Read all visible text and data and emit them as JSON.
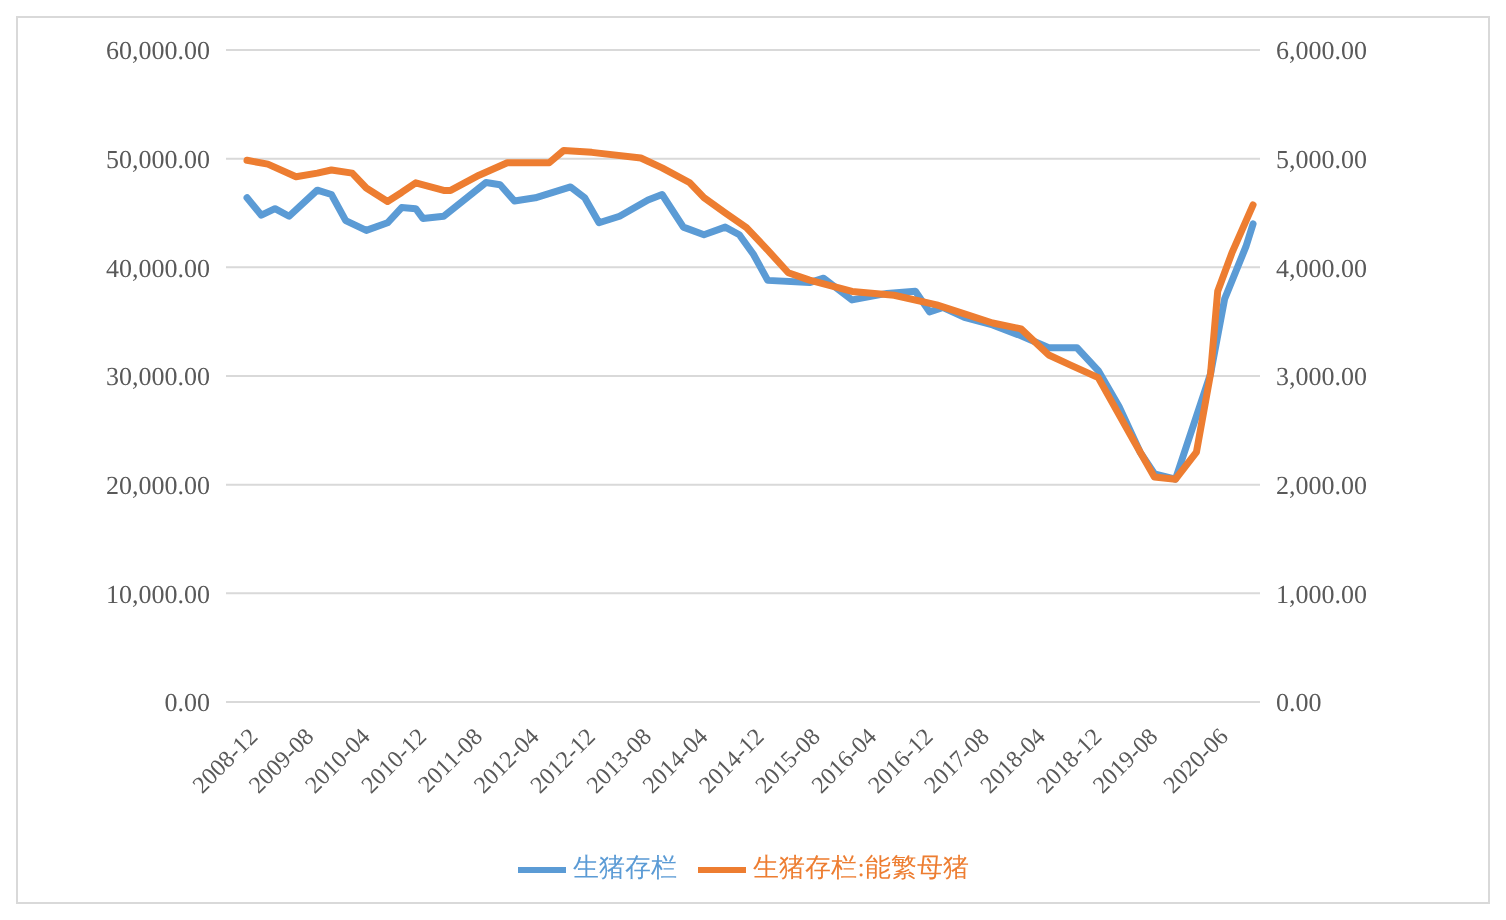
{
  "chart_data": {
    "type": "line",
    "xlim": [
      "2008-09",
      "2020-12"
    ],
    "xticks": [
      "2008-12",
      "2009-08",
      "2010-04",
      "2010-12",
      "2011-08",
      "2012-04",
      "2012-12",
      "2013-08",
      "2014-04",
      "2014-12",
      "2015-08",
      "2016-04",
      "2016-12",
      "2017-08",
      "2018-04",
      "2018-12",
      "2019-08",
      "2020-06"
    ],
    "ylim": [
      0,
      60000
    ],
    "yticks": [
      {
        "value": 0,
        "label": "0.00"
      },
      {
        "value": 10000,
        "label": "10,000.00"
      },
      {
        "value": 20000,
        "label": "20,000.00"
      },
      {
        "value": 30000,
        "label": "30,000.00"
      },
      {
        "value": 40000,
        "label": "40,000.00"
      },
      {
        "value": 50000,
        "label": "50,000.00"
      },
      {
        "value": 60000,
        "label": "60,000.00"
      }
    ],
    "y2lim": [
      0,
      6000
    ],
    "y2ticks": [
      {
        "value": 0,
        "label": "0.00"
      },
      {
        "value": 1000,
        "label": "1,000.00"
      },
      {
        "value": 2000,
        "label": "2,000.00"
      },
      {
        "value": 3000,
        "label": "3,000.00"
      },
      {
        "value": 4000,
        "label": "4,000.00"
      },
      {
        "value": 5000,
        "label": "5,000.00"
      },
      {
        "value": 6000,
        "label": "6,000.00"
      }
    ],
    "grid": "y",
    "legend": "bottom",
    "marker": "none",
    "line_style": "solid",
    "series": [
      {
        "name": "生猪存栏",
        "color": "#5b9bd5",
        "x": [
          "2008-12",
          "2009-02",
          "2009-04",
          "2009-06",
          "2009-10",
          "2009-12",
          "2010-02",
          "2010-05",
          "2010-08",
          "2010-10",
          "2010-12",
          "2011-01",
          "2011-04",
          "2011-10",
          "2011-12",
          "2012-02",
          "2012-05",
          "2012-10",
          "2012-12",
          "2013-02",
          "2013-05",
          "2013-09",
          "2013-11",
          "2014-02",
          "2014-05",
          "2014-08",
          "2014-10",
          "2014-12",
          "2015-02",
          "2015-08",
          "2015-10",
          "2016-02",
          "2016-07",
          "2016-11",
          "2017-01",
          "2017-03",
          "2017-06",
          "2017-10",
          "2018-02",
          "2018-06",
          "2018-10",
          "2019-01",
          "2019-04",
          "2019-07",
          "2019-09",
          "2019-12",
          "2020-05",
          "2020-07",
          "2020-10",
          "2020-11"
        ],
        "values": [
          46400,
          44800,
          45400,
          44700,
          47100,
          46700,
          44300,
          43400,
          44100,
          45500,
          45400,
          44500,
          44700,
          47800,
          47600,
          46100,
          46400,
          47400,
          46400,
          44100,
          44700,
          46200,
          46700,
          43700,
          43000,
          43700,
          43000,
          41200,
          38800,
          38600,
          39000,
          37000,
          37600,
          37800,
          35900,
          36300,
          35400,
          34700,
          33700,
          32600,
          32600,
          30500,
          27200,
          23000,
          21000,
          20500,
          30200,
          37100,
          41900,
          44000
        ]
      },
      {
        "name": "生猪存栏:能繁母猪",
        "color": "#ed7d31",
        "axis": "y2",
        "x": [
          "2008-12",
          "2009-03",
          "2009-07",
          "2009-10",
          "2009-12",
          "2010-03",
          "2010-05",
          "2010-08",
          "2010-10",
          "2010-12",
          "2011-04",
          "2011-05",
          "2011-09",
          "2012-01",
          "2012-07",
          "2012-09",
          "2013-01",
          "2013-08",
          "2013-11",
          "2014-03",
          "2014-05",
          "2014-08",
          "2014-11",
          "2015-02",
          "2015-05",
          "2015-08",
          "2016-02",
          "2016-08",
          "2017-02",
          "2017-06",
          "2017-10",
          "2018-02",
          "2018-06",
          "2018-09",
          "2019-01",
          "2019-06",
          "2019-09",
          "2019-12",
          "2020-03",
          "2020-05",
          "2020-06",
          "2020-08",
          "2020-11"
        ],
        "values": [
          4985,
          4950,
          4834,
          4867,
          4896,
          4867,
          4730,
          4606,
          4689,
          4778,
          4708,
          4708,
          4848,
          4963,
          4963,
          5075,
          5058,
          5006,
          4915,
          4778,
          4641,
          4502,
          4365,
          4158,
          3950,
          3882,
          3778,
          3743,
          3654,
          3571,
          3488,
          3434,
          3193,
          3102,
          2985,
          2413,
          2070,
          2050,
          2300,
          3020,
          3780,
          4130,
          4575
        ]
      }
    ]
  }
}
